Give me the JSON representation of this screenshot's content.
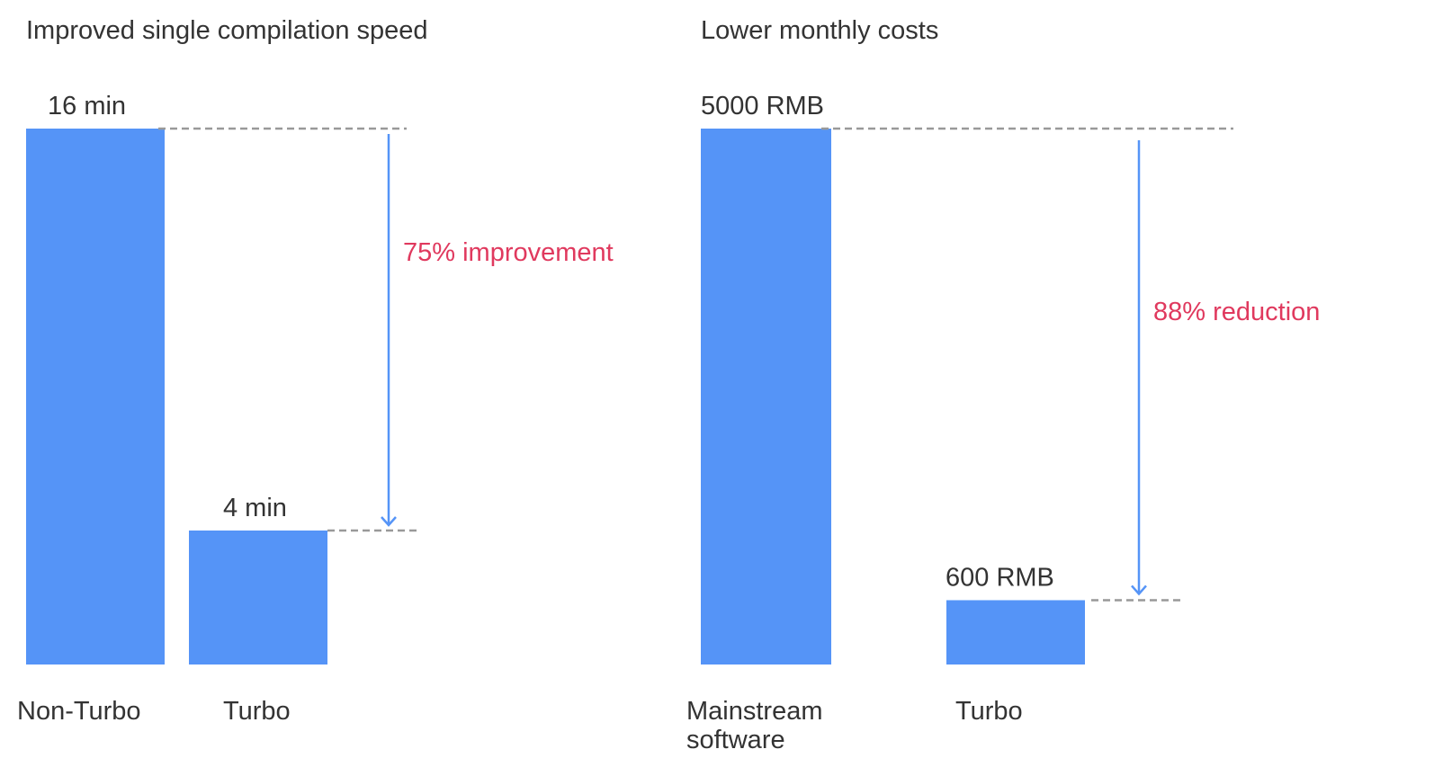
{
  "colors": {
    "bar": "#5594F7",
    "arrow": "#5594F7",
    "annotation": "#E0395E",
    "guide": "#999999",
    "text": "#333333"
  },
  "chart_data": [
    {
      "type": "bar",
      "title": "Improved single compilation speed",
      "categories": [
        "Non-Turbo",
        "Turbo"
      ],
      "values": [
        16,
        4
      ],
      "unit": "min",
      "value_labels": [
        "16 min",
        "4 min"
      ],
      "annotation": "75% improvement",
      "ylim": [
        0,
        16
      ],
      "grid": false
    },
    {
      "type": "bar",
      "title": "Lower monthly costs",
      "categories": [
        "Mainstream software",
        "Turbo"
      ],
      "category_lines": [
        [
          "Mainstream",
          "software"
        ],
        [
          "Turbo"
        ]
      ],
      "values": [
        5000,
        600
      ],
      "unit": "RMB",
      "value_labels": [
        "5000 RMB",
        "600 RMB"
      ],
      "annotation": "88% reduction",
      "ylim": [
        0,
        5000
      ],
      "grid": false
    }
  ]
}
